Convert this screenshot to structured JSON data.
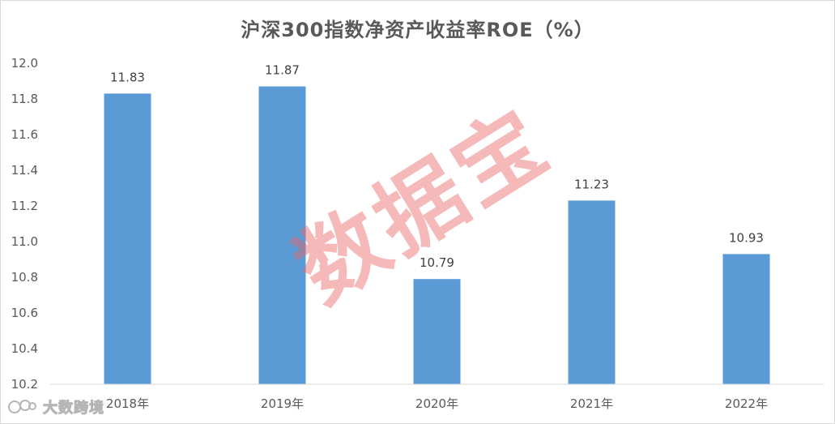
{
  "chart_data": {
    "type": "bar",
    "title": "沪深300指数净资产收益率ROE（%）",
    "categories": [
      "2018年",
      "2019年",
      "2020年",
      "2021年",
      "2022年"
    ],
    "values": [
      11.83,
      11.87,
      10.79,
      11.23,
      10.93
    ],
    "data_labels": [
      "11.83",
      "11.87",
      "10.79",
      "11.23",
      "10.93"
    ],
    "y_ticks": [
      "10.2",
      "10.4",
      "10.6",
      "10.8",
      "11.0",
      "11.2",
      "11.4",
      "11.6",
      "11.8",
      "12.0"
    ],
    "ylim": [
      10.2,
      12.0
    ],
    "xlabel": "",
    "ylabel": "",
    "grid": false,
    "legend": "none",
    "bar_color": "#5b9bd5"
  },
  "watermark": "数据宝",
  "brand": {
    "icon": "chat-bubble-logo-icon",
    "text": "大数跨境"
  }
}
